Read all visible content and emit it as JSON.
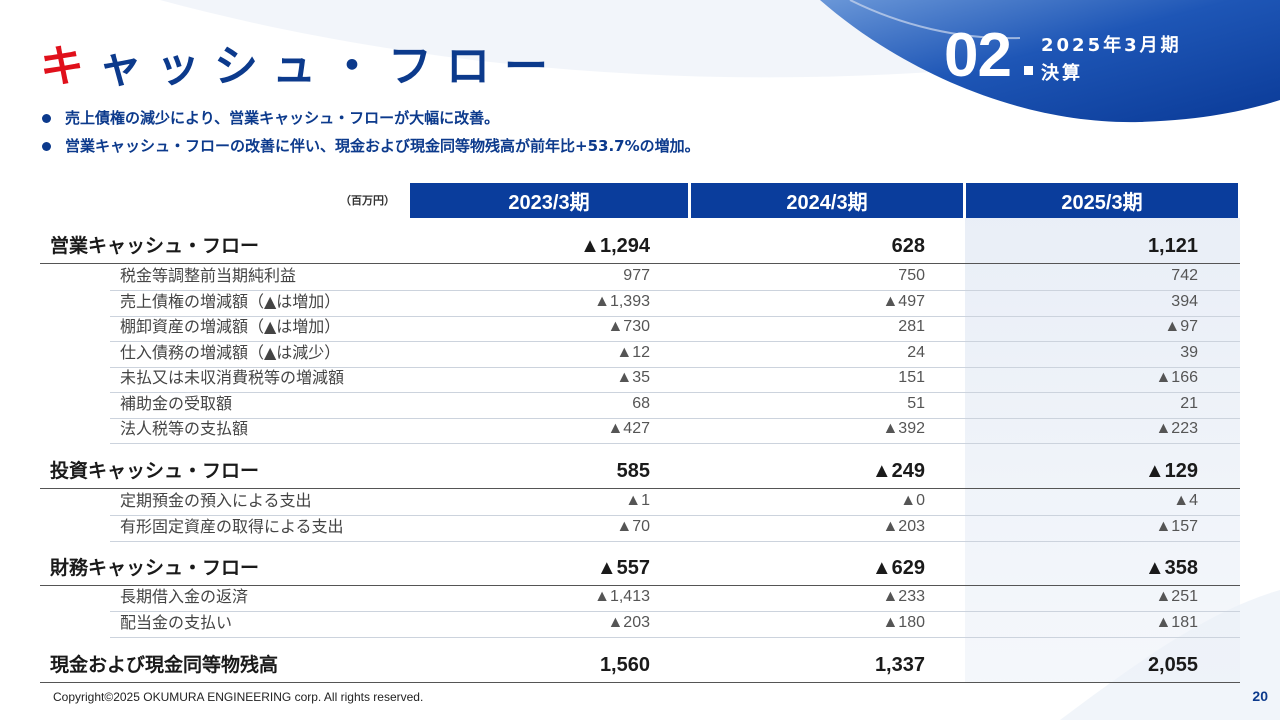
{
  "header": {
    "title_first": "キ",
    "title_rest": "ャッシュ・フロー",
    "section_number": "02",
    "section_label_line1": "2025年3月期",
    "section_label_line2": "決算"
  },
  "bullets": [
    "売上債権の減少により、営業キャッシュ・フローが大幅に改善。",
    "営業キャッシュ・フローの改善に伴い、現金および現金同等物残高が前年比+53.7%の増加。"
  ],
  "table": {
    "unit": "（百万円）",
    "columns": [
      "2023/3期",
      "2024/3期",
      "2025/3期"
    ],
    "rows": [
      {
        "type": "main",
        "label": "営業キャッシュ・フロー",
        "values": [
          "▲1,294",
          "628",
          "1,121"
        ]
      },
      {
        "type": "sub",
        "label": "税金等調整前当期純利益",
        "values": [
          "977",
          "750",
          "742"
        ]
      },
      {
        "type": "sub",
        "label": "売上債権の増減額（▲は増加）",
        "values": [
          "▲1,393",
          "▲497",
          "394"
        ]
      },
      {
        "type": "sub",
        "label": "棚卸資産の増減額（▲は増加）",
        "values": [
          "▲730",
          "281",
          "▲97"
        ]
      },
      {
        "type": "sub",
        "label": "仕入債務の増減額（▲は減少）",
        "values": [
          "▲12",
          "24",
          "39"
        ]
      },
      {
        "type": "sub",
        "label": "未払又は未収消費税等の増減額",
        "values": [
          "▲35",
          "151",
          "▲166"
        ]
      },
      {
        "type": "sub",
        "label": "補助金の受取額",
        "values": [
          "68",
          "51",
          "21"
        ]
      },
      {
        "type": "sub",
        "label": "法人税等の支払額",
        "values": [
          "▲427",
          "▲392",
          "▲223"
        ]
      },
      {
        "type": "main",
        "label": "投資キャッシュ・フロー",
        "values": [
          "585",
          "▲249",
          "▲129"
        ]
      },
      {
        "type": "sub",
        "label": "定期預金の預入による支出",
        "values": [
          "▲1",
          "▲0",
          "▲4"
        ]
      },
      {
        "type": "sub",
        "label": "有形固定資産の取得による支出",
        "values": [
          "▲70",
          "▲203",
          "▲157"
        ]
      },
      {
        "type": "main",
        "label": "財務キャッシュ・フロー",
        "values": [
          "▲557",
          "▲629",
          "▲358"
        ]
      },
      {
        "type": "sub",
        "label": "長期借入金の返済",
        "values": [
          "▲1,413",
          "▲233",
          "▲251"
        ]
      },
      {
        "type": "sub",
        "label": "配当金の支払い",
        "values": [
          "▲203",
          "▲180",
          "▲181"
        ]
      },
      {
        "type": "main",
        "label": "現金および現金同等物残高",
        "values": [
          "1,560",
          "1,337",
          "2,055"
        ]
      }
    ]
  },
  "footer": {
    "copyright": "Copyright©2025 OKUMURA ENGINEERING corp. All rights reserved.",
    "page_number": "20"
  },
  "colors": {
    "brand_blue": "#0c3a8c",
    "header_fill": "#0a3d9c",
    "accent_red": "#e0101b"
  }
}
